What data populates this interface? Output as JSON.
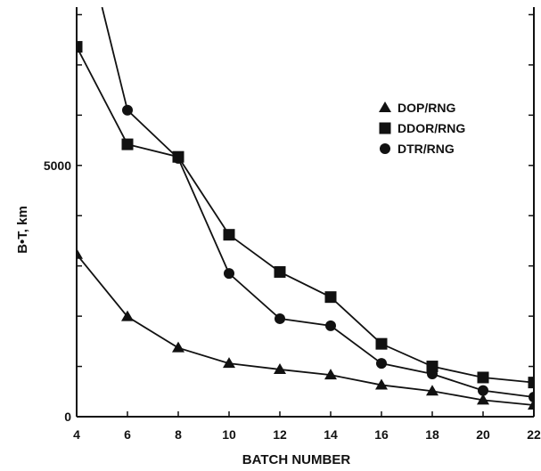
{
  "chart_data": {
    "type": "line",
    "xlabel": "BATCH NUMBER",
    "ylabel": "B•T, km",
    "xlim": [
      4,
      22
    ],
    "ylim": [
      0,
      8150
    ],
    "x_ticks": [
      "4",
      "6",
      "8",
      "10",
      "12",
      "14",
      "16",
      "18",
      "20",
      "22"
    ],
    "y_tick_labels": [
      {
        "value": 0,
        "label": "0"
      },
      {
        "value": 5000,
        "label": "5000"
      }
    ],
    "y_minor_ticks": [
      1000,
      2000,
      3000,
      4000,
      6000,
      7000,
      8000
    ],
    "grid": false,
    "legend_position": "upper-right",
    "series": [
      {
        "name": "DOP/RNG",
        "marker": "triangle",
        "x": [
          4,
          6,
          8,
          10,
          12,
          14,
          16,
          18,
          20,
          22
        ],
        "y": [
          3230,
          1990,
          1370,
          1060,
          940,
          830,
          630,
          510,
          330,
          230
        ]
      },
      {
        "name": "DDOR/RNG",
        "marker": "square",
        "x": [
          4,
          6,
          8,
          10,
          12,
          14,
          16,
          18,
          20,
          22
        ],
        "y": [
          7360,
          5420,
          5170,
          3620,
          2880,
          2380,
          1450,
          1000,
          780,
          680
        ]
      },
      {
        "name": "DTR/RNG",
        "marker": "circle",
        "x": [
          5,
          6,
          8,
          10,
          12,
          14,
          16,
          18,
          20,
          22
        ],
        "y": [
          8150,
          6100,
          5140,
          2850,
          1950,
          1810,
          1060,
          850,
          520,
          390
        ]
      }
    ]
  }
}
